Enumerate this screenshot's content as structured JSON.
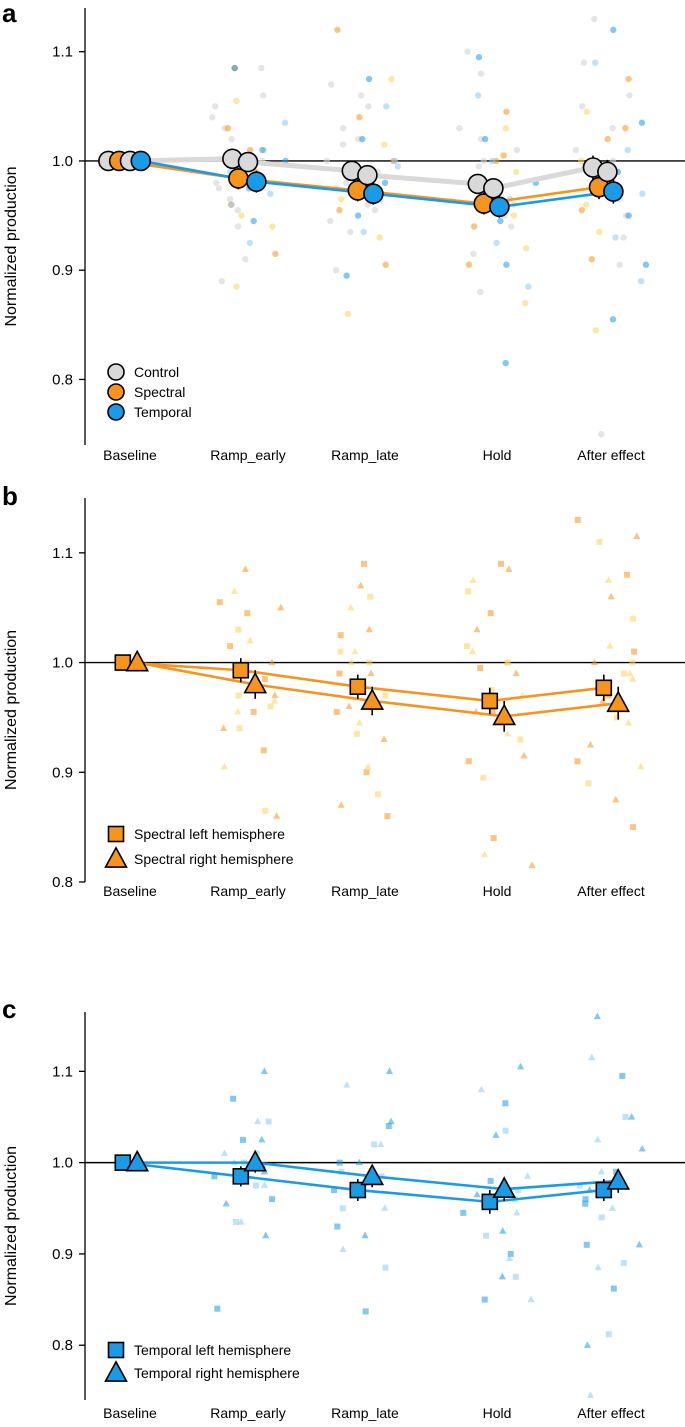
{
  "colors": {
    "control": "#d9d9d9",
    "spectral": "#f7941d",
    "temporal": "#1b9be6",
    "scatter_control": "#d4d4d4",
    "scatter_spectral": [
      "#f7941d",
      "#fbd35c"
    ],
    "scatter_temporal": [
      "#1b9be6",
      "#8ccbf2"
    ]
  },
  "chart_data": [
    {
      "panel": "a",
      "type": "line",
      "title": "",
      "xlabel": "",
      "ylabel": "Normalized production",
      "categories": [
        "Baseline",
        "Ramp_early",
        "Ramp_late",
        "Hold",
        "After effect"
      ],
      "ylim": [
        0.74,
        1.14
      ],
      "yticks": [
        0.8,
        0.9,
        1.0,
        1.1
      ],
      "ytick_labels": [
        "0.8",
        "0.9",
        "1.0",
        "1.1"
      ],
      "reference_line": 1.0,
      "legend_location": "bottom-left",
      "series": [
        {
          "name": "Control",
          "label": "Control",
          "marker": "circle",
          "color_key": "control",
          "values": [
            1.0,
            0.997,
            0.986,
            0.975,
            0.99
          ],
          "errors": [
            0,
            0.009,
            0.009,
            0.009,
            0.011
          ]
        },
        {
          "name": "Spectral",
          "label": "Spectral",
          "marker": "circle",
          "color_key": "spectral",
          "values": [
            1.0,
            0.98,
            0.973,
            0.96,
            0.976
          ],
          "errors": [
            0,
            0.01,
            0.01,
            0.01,
            0.011
          ]
        },
        {
          "name": "Temporal",
          "label": "Temporal",
          "marker": "circle",
          "color_key": "temporal",
          "values": [
            1.0,
            0.981,
            0.97,
            0.958,
            0.972
          ],
          "errors": [
            0,
            0.01,
            0.01,
            0.01,
            0.011
          ]
        }
      ],
      "markers": [
        {
          "series": 0,
          "cat": 0,
          "offset": -0.36,
          "y": 1.0,
          "err": 0
        },
        {
          "series": 1,
          "cat": 0,
          "offset": -0.18,
          "y": 1.0,
          "err": 0
        },
        {
          "series": 0,
          "cat": 0,
          "offset": 0.0,
          "y": 1.0,
          "err": 0
        },
        {
          "series": 2,
          "cat": 0,
          "offset": 0.18,
          "y": 1.0,
          "err": 0
        },
        {
          "series": 0,
          "cat": 1,
          "offset": -0.26,
          "y": 1.002,
          "err": 0.009
        },
        {
          "series": 1,
          "cat": 1,
          "offset": -0.16,
          "y": 0.984,
          "err": 0.01
        },
        {
          "series": 0,
          "cat": 1,
          "offset": 0.0,
          "y": 0.999,
          "err": 0.009
        },
        {
          "series": 2,
          "cat": 1,
          "offset": 0.14,
          "y": 0.981,
          "err": 0.01
        },
        {
          "series": 0,
          "cat": 2,
          "offset": -0.22,
          "y": 0.991,
          "err": 0.009
        },
        {
          "series": 1,
          "cat": 2,
          "offset": -0.12,
          "y": 0.973,
          "err": 0.01
        },
        {
          "series": 0,
          "cat": 2,
          "offset": 0.04,
          "y": 0.987,
          "err": 0.009
        },
        {
          "series": 2,
          "cat": 2,
          "offset": 0.14,
          "y": 0.97,
          "err": 0.01
        },
        {
          "series": 0,
          "cat": 3,
          "offset": -0.32,
          "y": 0.979,
          "err": 0.009
        },
        {
          "series": 1,
          "cat": 3,
          "offset": -0.22,
          "y": 0.961,
          "err": 0.01
        },
        {
          "series": 0,
          "cat": 3,
          "offset": -0.06,
          "y": 0.975,
          "err": 0.009
        },
        {
          "series": 2,
          "cat": 3,
          "offset": 0.04,
          "y": 0.958,
          "err": 0.01
        },
        {
          "series": 0,
          "cat": 4,
          "offset": -0.3,
          "y": 0.994,
          "err": 0.011
        },
        {
          "series": 1,
          "cat": 4,
          "offset": -0.2,
          "y": 0.976,
          "err": 0.011
        },
        {
          "series": 0,
          "cat": 4,
          "offset": -0.06,
          "y": 0.99,
          "err": 0.011
        },
        {
          "series": 2,
          "cat": 4,
          "offset": 0.04,
          "y": 0.972,
          "err": 0.011
        }
      ],
      "scatter": [
        {
          "group": "control",
          "values": [
            [
              1.085,
              1.06,
              1.04,
              1.02,
              1.0,
              0.98,
              0.965,
              0.94,
              0.91,
              0.89,
              1.05,
              1.01,
              0.995,
              0.975,
              0.955,
              1.03
            ],
            [
              1.07,
              1.05,
              1.03,
              1.015,
              1.0,
              0.99,
              0.975,
              0.955,
              0.935,
              0.9,
              1.02,
              0.98,
              0.96,
              1.06,
              0.945
            ],
            [
              1.1,
              1.08,
              1.03,
              1.01,
              0.995,
              0.98,
              0.965,
              0.94,
              0.915,
              0.88,
              1.0,
              0.975,
              0.95,
              1.02
            ],
            [
              1.13,
              1.09,
              1.05,
              1.03,
              1.01,
              0.995,
              0.98,
              0.965,
              0.95,
              0.93,
              0.905,
              1.0,
              0.97,
              0.75,
              1.06
            ]
          ]
        },
        {
          "group": "spectral",
          "values": [
            [
              1.085,
              1.055,
              1.03,
              1.005,
              0.99,
              0.975,
              0.96,
              0.94,
              0.915,
              0.885,
              1.01,
              0.95
            ],
            [
              1.12,
              1.075,
              1.04,
              1.015,
              0.99,
              0.975,
              0.955,
              0.93,
              0.905,
              0.86,
              1.0,
              0.965
            ],
            [
              1.045,
              1.03,
              1.005,
              0.99,
              0.975,
              0.96,
              0.94,
              0.92,
              0.905,
              0.87,
              1.0,
              0.95
            ],
            [
              1.075,
              1.045,
              1.02,
              1.0,
              0.985,
              0.97,
              0.955,
              0.935,
              0.91,
              0.845,
              1.03,
              0.96
            ]
          ]
        },
        {
          "group": "temporal",
          "values": [
            [
              1.085,
              1.035,
              1.01,
              0.99,
              0.975,
              0.96,
              0.945,
              0.925,
              1.0,
              0.97
            ],
            [
              1.075,
              1.05,
              1.02,
              0.995,
              0.98,
              0.965,
              0.95,
              0.935,
              0.895,
              1.0
            ],
            [
              1.095,
              1.06,
              1.02,
              1.0,
              0.98,
              0.965,
              0.945,
              0.925,
              0.905,
              0.885,
              0.815
            ],
            [
              1.12,
              1.09,
              1.035,
              1.01,
              0.99,
              0.97,
              0.95,
              0.93,
              0.905,
              0.89,
              0.855
            ]
          ]
        }
      ]
    },
    {
      "panel": "b",
      "type": "line",
      "title": "",
      "xlabel": "",
      "ylabel": "Normalized production",
      "categories": [
        "Baseline",
        "Ramp_early",
        "Ramp_late",
        "Hold",
        "After effect"
      ],
      "ylim": [
        0.8,
        1.15
      ],
      "yticks": [
        0.8,
        0.9,
        1.0,
        1.1
      ],
      "ytick_labels": [
        "0.8",
        "0.9",
        "1.0",
        "1.1"
      ],
      "reference_line": 1.0,
      "legend_location": "bottom-left",
      "series": [
        {
          "name": "Spectral left hemisphere",
          "label": "Spectral left hemisphere",
          "marker": "square",
          "color_key": "spectral",
          "values": [
            1.0,
            0.993,
            0.978,
            0.965,
            0.977
          ],
          "errors": [
            0,
            0.011,
            0.011,
            0.012,
            0.012
          ]
        },
        {
          "name": "Spectral right hemisphere",
          "label": "Spectral right hemisphere",
          "marker": "triangle",
          "color_key": "spectral",
          "values": [
            1.0,
            0.98,
            0.965,
            0.951,
            0.963
          ],
          "errors": [
            0,
            0.013,
            0.013,
            0.014,
            0.015
          ]
        }
      ],
      "markers": [
        {
          "series": 0,
          "cat": 0,
          "offset": -0.12,
          "y": 1.0,
          "err": 0
        },
        {
          "series": 1,
          "cat": 0,
          "offset": 0.12,
          "y": 1.0,
          "err": 0
        },
        {
          "series": 0,
          "cat": 1,
          "offset": -0.12,
          "y": 0.993,
          "err": 0.011
        },
        {
          "series": 1,
          "cat": 1,
          "offset": 0.12,
          "y": 0.98,
          "err": 0.013
        },
        {
          "series": 0,
          "cat": 2,
          "offset": -0.12,
          "y": 0.978,
          "err": 0.011
        },
        {
          "series": 1,
          "cat": 2,
          "offset": 0.12,
          "y": 0.965,
          "err": 0.013
        },
        {
          "series": 0,
          "cat": 3,
          "offset": -0.12,
          "y": 0.965,
          "err": 0.012
        },
        {
          "series": 1,
          "cat": 3,
          "offset": 0.12,
          "y": 0.951,
          "err": 0.014
        },
        {
          "series": 0,
          "cat": 4,
          "offset": -0.12,
          "y": 0.977,
          "err": 0.012
        },
        {
          "series": 1,
          "cat": 4,
          "offset": 0.12,
          "y": 0.963,
          "err": 0.015
        }
      ],
      "scatter": [
        {
          "group": "spectral-left",
          "values": [
            [
              1.055,
              1.03,
              1.015,
              1.0,
              0.985,
              0.97,
              0.955,
              0.94,
              0.92,
              0.865,
              1.045,
              0.96
            ],
            [
              1.09,
              1.06,
              1.025,
              1.01,
              0.99,
              0.97,
              0.955,
              0.935,
              0.9,
              0.88,
              0.86,
              1.0
            ],
            [
              1.09,
              1.065,
              1.045,
              1.015,
              0.995,
              0.975,
              0.955,
              0.93,
              0.91,
              0.895,
              0.84,
              1.0
            ],
            [
              1.13,
              1.11,
              1.08,
              1.04,
              1.01,
              0.99,
              0.97,
              0.95,
              0.91,
              0.89,
              0.85,
              1.0
            ]
          ]
        },
        {
          "group": "spectral-right",
          "values": [
            [
              1.085,
              1.065,
              1.05,
              1.02,
              1.0,
              0.985,
              0.97,
              0.955,
              0.94,
              0.905,
              0.86,
              0.965
            ],
            [
              1.07,
              1.05,
              1.03,
              1.01,
              0.99,
              0.975,
              0.96,
              0.945,
              0.93,
              0.905,
              0.87,
              1.0
            ],
            [
              1.085,
              1.075,
              1.03,
              1.01,
              0.99,
              0.97,
              0.955,
              0.935,
              0.915,
              0.825,
              0.815,
              1.0
            ],
            [
              1.115,
              1.075,
              1.06,
              1.015,
              1.0,
              0.985,
              0.965,
              0.945,
              0.925,
              0.905,
              0.875,
              0.99
            ]
          ]
        }
      ]
    },
    {
      "panel": "c",
      "type": "line",
      "title": "",
      "xlabel": "",
      "ylabel": "Normalized production",
      "categories": [
        "Baseline",
        "Ramp_early",
        "Ramp_late",
        "Hold",
        "After effect"
      ],
      "ylim": [
        0.74,
        1.165
      ],
      "yticks": [
        0.8,
        0.9,
        1.0,
        1.1
      ],
      "ytick_labels": [
        "0.8",
        "0.9",
        "1.0",
        "1.1"
      ],
      "reference_line": 1.0,
      "legend_location": "bottom-left",
      "series": [
        {
          "name": "Temporal left hemisphere",
          "label": "Temporal left hemisphere",
          "marker": "square",
          "color_key": "temporal",
          "values": [
            1.0,
            0.985,
            0.97,
            0.957,
            0.97
          ],
          "errors": [
            0,
            0.011,
            0.012,
            0.013,
            0.012
          ]
        },
        {
          "name": "Temporal right hemisphere",
          "label": "Temporal right hemisphere",
          "marker": "triangle",
          "color_key": "temporal",
          "values": [
            1.0,
            1.0,
            0.985,
            0.971,
            0.98
          ],
          "errors": [
            0,
            0.011,
            0.012,
            0.013,
            0.013
          ]
        }
      ],
      "markers": [
        {
          "series": 0,
          "cat": 0,
          "offset": -0.12,
          "y": 1.0,
          "err": 0
        },
        {
          "series": 1,
          "cat": 0,
          "offset": 0.12,
          "y": 1.0,
          "err": 0
        },
        {
          "series": 0,
          "cat": 1,
          "offset": -0.12,
          "y": 0.985,
          "err": 0.011
        },
        {
          "series": 1,
          "cat": 1,
          "offset": 0.12,
          "y": 1.0,
          "err": 0.011
        },
        {
          "series": 0,
          "cat": 2,
          "offset": -0.12,
          "y": 0.97,
          "err": 0.012
        },
        {
          "series": 1,
          "cat": 2,
          "offset": 0.12,
          "y": 0.985,
          "err": 0.012
        },
        {
          "series": 0,
          "cat": 3,
          "offset": -0.12,
          "y": 0.957,
          "err": 0.013
        },
        {
          "series": 1,
          "cat": 3,
          "offset": 0.12,
          "y": 0.971,
          "err": 0.013
        },
        {
          "series": 0,
          "cat": 4,
          "offset": -0.12,
          "y": 0.97,
          "err": 0.012
        },
        {
          "series": 1,
          "cat": 4,
          "offset": 0.12,
          "y": 0.98,
          "err": 0.013
        }
      ],
      "scatter": [
        {
          "group": "temporal-left",
          "values": [
            [
              1.07,
              1.045,
              1.025,
              1.01,
              0.995,
              0.975,
              0.96,
              0.935,
              0.84,
              1.0,
              0.985
            ],
            [
              1.04,
              1.02,
              1.0,
              0.985,
              0.97,
              0.95,
              0.93,
              0.885,
              0.837,
              0.99
            ],
            [
              1.065,
              1.035,
              0.98,
              0.96,
              0.945,
              0.92,
              0.9,
              0.875,
              0.85,
              0.97
            ],
            [
              1.095,
              1.05,
              0.99,
              0.975,
              0.96,
              0.94,
              0.91,
              0.89,
              0.862,
              0.812,
              0.955
            ]
          ]
        },
        {
          "group": "temporal-right",
          "values": [
            [
              1.1,
              1.045,
              1.025,
              1.01,
              0.99,
              0.975,
              0.955,
              0.935,
              0.92,
              1.0
            ],
            [
              1.1,
              1.085,
              1.045,
              1.02,
              1.0,
              0.985,
              0.965,
              0.95,
              0.92,
              0.905
            ],
            [
              1.105,
              1.08,
              1.03,
              0.985,
              0.965,
              0.945,
              0.925,
              0.895,
              0.875,
              0.85
            ],
            [
              1.16,
              1.115,
              1.05,
              1.025,
              1.015,
              0.99,
              0.97,
              0.95,
              0.91,
              0.885,
              0.8,
              0.745
            ]
          ]
        }
      ]
    }
  ]
}
